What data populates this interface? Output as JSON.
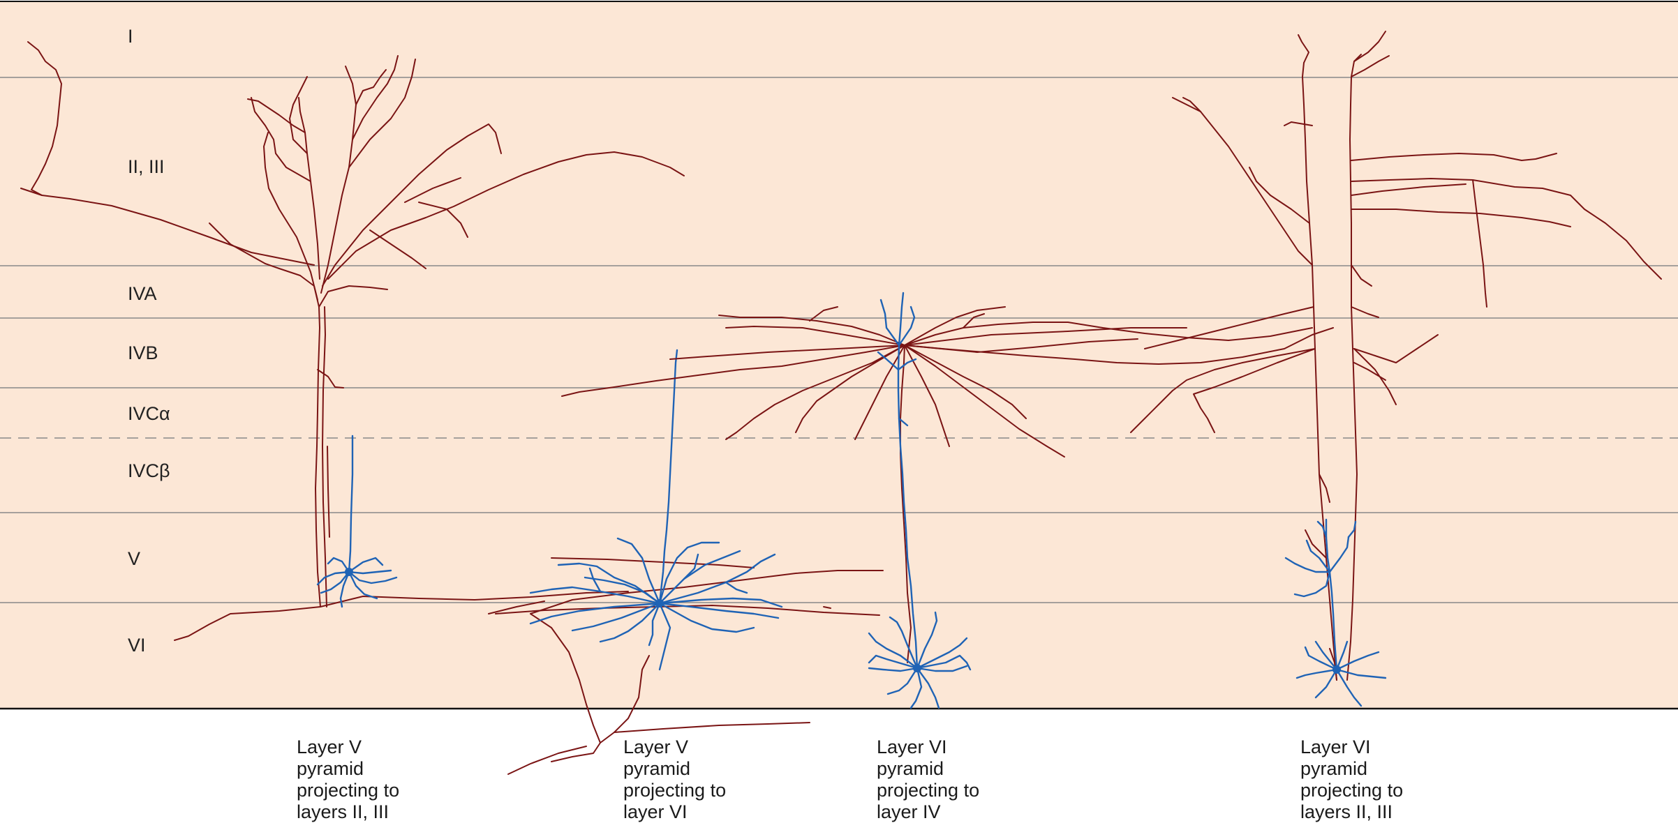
{
  "colors": {
    "background": "#fce7d6",
    "rule": "#888888",
    "axon": "#7a1414",
    "dendrite": "#1f63b5"
  },
  "layers": [
    {
      "label": "I"
    },
    {
      "label": "II, III"
    },
    {
      "label": "IVA"
    },
    {
      "label": "IVB"
    },
    {
      "label": "IVCα"
    },
    {
      "label": "IVCβ"
    },
    {
      "label": "V"
    },
    {
      "label": "VI"
    }
  ],
  "cells": [
    {
      "caption": "Layer V\npyramid\nprojecting to\nlayers II, III"
    },
    {
      "caption": "Layer V\npyramid\nprojecting to\nlayer VI"
    },
    {
      "caption": "Layer VI\npyramid\nprojecting to\nlayer IV"
    },
    {
      "caption": "Layer VI\npyramid\nprojecting to\nlayers II, III"
    }
  ]
}
